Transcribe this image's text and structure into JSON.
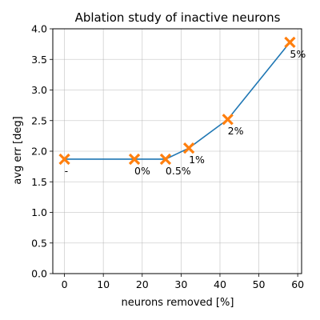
{
  "chart_data": {
    "type": "line",
    "title": "Ablation study of inactive neurons",
    "xlabel": "neurons removed [%]",
    "ylabel": "avg err [deg]",
    "xlim": [
      -3,
      61
    ],
    "ylim": [
      0,
      4.0
    ],
    "xticks": [
      0,
      10,
      20,
      30,
      40,
      50,
      60
    ],
    "yticks": [
      0.0,
      0.5,
      1.0,
      1.5,
      2.0,
      2.5,
      3.0,
      3.5,
      4.0
    ],
    "grid": true,
    "line_color": "#1f77b4",
    "marker_color": "#ff7f0e",
    "marker": "x",
    "points": [
      {
        "x": 0,
        "y": 1.87,
        "label": "-"
      },
      {
        "x": 18,
        "y": 1.87,
        "label": "0%"
      },
      {
        "x": 26,
        "y": 1.87,
        "label": "0.5%"
      },
      {
        "x": 32,
        "y": 2.05,
        "label": "1%"
      },
      {
        "x": 42,
        "y": 2.52,
        "label": "2%"
      },
      {
        "x": 58,
        "y": 3.78,
        "label": "5%"
      }
    ]
  }
}
